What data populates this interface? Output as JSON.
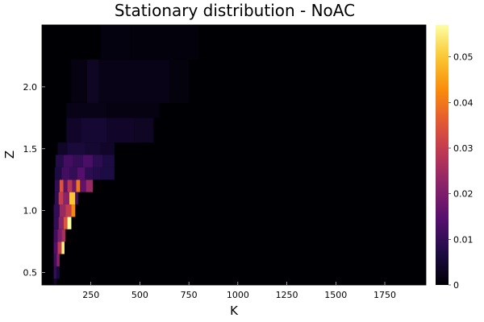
{
  "chart_data": {
    "type": "heatmap",
    "title": "Stationary distribution - NoAC",
    "xlabel": "K",
    "ylabel": "Z",
    "xlim": [
      0,
      1960
    ],
    "ylim": [
      0.4,
      2.5
    ],
    "x_ticks": [
      250,
      500,
      750,
      1000,
      1250,
      1500,
      1750
    ],
    "x_tick_labels": [
      "250",
      "500",
      "750",
      "1000",
      "1250",
      "1500",
      "1750"
    ],
    "y_ticks": [
      0.5,
      1.0,
      1.5,
      2.0
    ],
    "y_tick_labels": [
      "0.5",
      "1.0",
      "1.5",
      "2.0"
    ],
    "colorbar": {
      "colormap": "inferno",
      "range": [
        0,
        0.057
      ],
      "ticks": [
        0,
        0.01,
        0.02,
        0.03,
        0.04,
        0.05
      ],
      "tick_labels": [
        "0",
        "0.01",
        "0.02",
        "0.03",
        "0.04",
        "0.05"
      ]
    },
    "z_bands": [
      {
        "z0": 0.4,
        "z1": 0.45,
        "cells": [
          {
            "k0": 60,
            "k1": 75,
            "v": 0.004
          }
        ]
      },
      {
        "z0": 0.45,
        "z1": 0.55,
        "cells": [
          {
            "k0": 60,
            "k1": 75,
            "v": 0.01
          },
          {
            "k0": 75,
            "k1": 90,
            "v": 0.006
          }
        ]
      },
      {
        "z0": 0.55,
        "z1": 0.65,
        "cells": [
          {
            "k0": 60,
            "k1": 75,
            "v": 0.012
          },
          {
            "k0": 75,
            "k1": 90,
            "v": 0.022
          }
        ]
      },
      {
        "z0": 0.65,
        "z1": 0.75,
        "cells": [
          {
            "k0": 60,
            "k1": 80,
            "v": 0.014
          },
          {
            "k0": 80,
            "k1": 100,
            "v": 0.03
          },
          {
            "k0": 100,
            "k1": 115,
            "v": 0.055
          }
        ]
      },
      {
        "z0": 0.75,
        "z1": 0.85,
        "cells": [
          {
            "k0": 60,
            "k1": 80,
            "v": 0.012
          },
          {
            "k0": 80,
            "k1": 100,
            "v": 0.02
          },
          {
            "k0": 100,
            "k1": 120,
            "v": 0.026
          }
        ]
      },
      {
        "z0": 0.85,
        "z1": 0.95,
        "cells": [
          {
            "k0": 60,
            "k1": 85,
            "v": 0.01
          },
          {
            "k0": 85,
            "k1": 110,
            "v": 0.022
          },
          {
            "k0": 110,
            "k1": 130,
            "v": 0.035
          },
          {
            "k0": 130,
            "k1": 150,
            "v": 0.057
          }
        ]
      },
      {
        "z0": 0.95,
        "z1": 1.05,
        "cells": [
          {
            "k0": 60,
            "k1": 90,
            "v": 0.01
          },
          {
            "k0": 90,
            "k1": 120,
            "v": 0.024
          },
          {
            "k0": 120,
            "k1": 150,
            "v": 0.03
          },
          {
            "k0": 150,
            "k1": 170,
            "v": 0.042
          }
        ]
      },
      {
        "z0": 1.05,
        "z1": 1.15,
        "cells": [
          {
            "k0": 65,
            "k1": 85,
            "v": 0.01
          },
          {
            "k0": 85,
            "k1": 110,
            "v": 0.03
          },
          {
            "k0": 110,
            "k1": 140,
            "v": 0.022
          },
          {
            "k0": 140,
            "k1": 170,
            "v": 0.05
          },
          {
            "k0": 170,
            "k1": 185,
            "v": 0.012
          }
        ]
      },
      {
        "z0": 1.15,
        "z1": 1.25,
        "cells": [
          {
            "k0": 65,
            "k1": 90,
            "v": 0.01
          },
          {
            "k0": 90,
            "k1": 110,
            "v": 0.035
          },
          {
            "k0": 110,
            "k1": 130,
            "v": 0.016
          },
          {
            "k0": 130,
            "k1": 155,
            "v": 0.028
          },
          {
            "k0": 155,
            "k1": 175,
            "v": 0.018
          },
          {
            "k0": 175,
            "k1": 195,
            "v": 0.04
          },
          {
            "k0": 195,
            "k1": 225,
            "v": 0.016
          },
          {
            "k0": 225,
            "k1": 260,
            "v": 0.024
          }
        ]
      },
      {
        "z0": 1.25,
        "z1": 1.35,
        "cells": [
          {
            "k0": 65,
            "k1": 100,
            "v": 0.007
          },
          {
            "k0": 100,
            "k1": 140,
            "v": 0.012
          },
          {
            "k0": 140,
            "k1": 180,
            "v": 0.01
          },
          {
            "k0": 180,
            "k1": 220,
            "v": 0.014
          },
          {
            "k0": 220,
            "k1": 260,
            "v": 0.009
          },
          {
            "k0": 260,
            "k1": 300,
            "v": 0.008
          },
          {
            "k0": 300,
            "k1": 370,
            "v": 0.007
          }
        ]
      },
      {
        "z0": 1.35,
        "z1": 1.45,
        "cells": [
          {
            "k0": 70,
            "k1": 110,
            "v": 0.008
          },
          {
            "k0": 110,
            "k1": 160,
            "v": 0.012
          },
          {
            "k0": 160,
            "k1": 210,
            "v": 0.01
          },
          {
            "k0": 210,
            "k1": 260,
            "v": 0.013
          },
          {
            "k0": 260,
            "k1": 310,
            "v": 0.009
          },
          {
            "k0": 310,
            "k1": 370,
            "v": 0.007
          }
        ]
      },
      {
        "z0": 1.45,
        "z1": 1.55,
        "cells": [
          {
            "k0": 80,
            "k1": 130,
            "v": 0.004
          },
          {
            "k0": 130,
            "k1": 220,
            "v": 0.006
          },
          {
            "k0": 220,
            "k1": 300,
            "v": 0.005
          },
          {
            "k0": 300,
            "k1": 370,
            "v": 0.004
          }
        ]
      },
      {
        "z0": 1.55,
        "z1": 1.75,
        "cells": [
          {
            "k0": 125,
            "k1": 200,
            "v": 0.004
          },
          {
            "k0": 200,
            "k1": 330,
            "v": 0.005
          },
          {
            "k0": 330,
            "k1": 470,
            "v": 0.004
          },
          {
            "k0": 470,
            "k1": 570,
            "v": 0.0035
          }
        ]
      },
      {
        "z0": 1.75,
        "z1": 1.87,
        "cells": [
          {
            "k0": 125,
            "k1": 330,
            "v": 0.002
          },
          {
            "k0": 330,
            "k1": 600,
            "v": 0.0015
          }
        ]
      },
      {
        "z0": 1.87,
        "z1": 2.22,
        "cells": [
          {
            "k0": 150,
            "k1": 230,
            "v": 0.0015
          },
          {
            "k0": 230,
            "k1": 290,
            "v": 0.0035
          },
          {
            "k0": 290,
            "k1": 650,
            "v": 0.002
          },
          {
            "k0": 650,
            "k1": 750,
            "v": 0.001
          }
        ]
      },
      {
        "z0": 2.22,
        "z1": 2.5,
        "cells": [
          {
            "k0": 300,
            "k1": 450,
            "v": 0.0012
          },
          {
            "k0": 450,
            "k1": 800,
            "v": 0.0008
          }
        ]
      }
    ]
  }
}
